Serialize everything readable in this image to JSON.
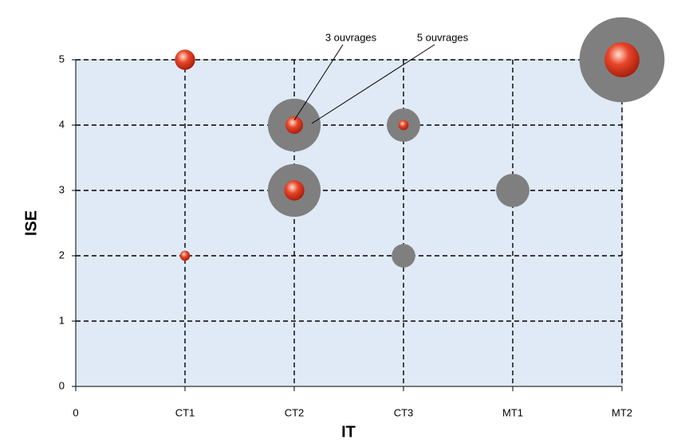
{
  "chart_data": {
    "type": "bubble",
    "x_label": "IT",
    "y_label": "ISE",
    "xlim": [
      0,
      5
    ],
    "ylim": [
      0,
      5
    ],
    "xticks": [
      0,
      {
        "value": 1,
        "label": "CT1"
      },
      {
        "value": 2,
        "label": "CT2"
      },
      {
        "value": 3,
        "label": "CT3"
      },
      {
        "value": 4,
        "label": "MT1"
      },
      {
        "value": 5,
        "label": "MT2"
      }
    ],
    "yticks": [
      0,
      1,
      2,
      3,
      4,
      5
    ],
    "grid": true,
    "series": [
      {
        "color": "#7f7f7f",
        "x": [
          2,
          2,
          3,
          3,
          4,
          5
        ],
        "values": [
          4,
          3,
          4,
          2,
          3,
          5
        ],
        "sizes": [
          5,
          5,
          2,
          1,
          2,
          13
        ]
      },
      {
        "color": "#e8452a",
        "x": [
          1,
          1,
          2,
          2,
          3,
          5
        ],
        "values": [
          5,
          2,
          4,
          3,
          4,
          5
        ],
        "sizes": [
          4,
          1,
          3,
          4,
          1,
          12
        ]
      }
    ],
    "annotations": [
      {
        "text": "3 ouvrages",
        "series": 1,
        "point": 2
      },
      {
        "text": "5 ouvrages",
        "series": 0,
        "point": 0
      }
    ]
  }
}
